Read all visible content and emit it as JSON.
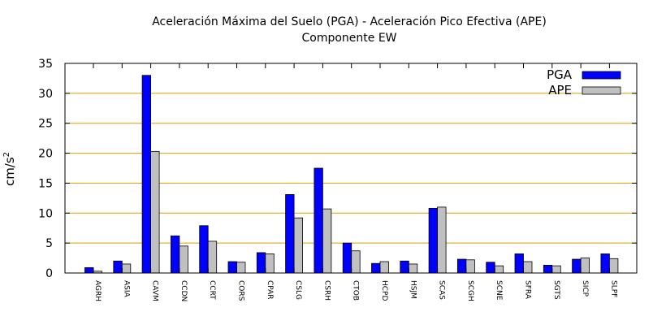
{
  "chart_data": {
    "type": "bar",
    "title": "Aceleración Máxima del Suelo (PGA) -  Aceleración Pico Efectiva (APE)",
    "subtitle": "Componente EW",
    "xlabel": "",
    "ylabel": "cm/s",
    "ylabel_superscript": "2",
    "ylim": [
      0,
      35
    ],
    "yticks": [
      "0",
      "5",
      "10",
      "15",
      "20",
      "25",
      "30",
      "35"
    ],
    "grid": true,
    "legend_position": "top-right",
    "categories": [
      "AGRH",
      "ASIA",
      "CAVM",
      "CCDN",
      "CCRT",
      "CORS",
      "CPAR",
      "CSLG",
      "CSRH",
      "CTOB",
      "HCPD",
      "HSJM",
      "SCAS",
      "SCGH",
      "SCNE",
      "SFRA",
      "SGTS",
      "SICP",
      "SLPF"
    ],
    "series": [
      {
        "name": "PGA",
        "color": "#0000ff",
        "values": [
          0.9,
          2.0,
          33.0,
          6.2,
          7.9,
          1.9,
          3.4,
          13.1,
          17.5,
          5.0,
          1.6,
          2.0,
          10.8,
          2.3,
          1.8,
          3.2,
          1.3,
          2.3,
          3.2
        ]
      },
      {
        "name": "APE",
        "color": "#c0c0c0",
        "values": [
          0.3,
          1.5,
          20.3,
          4.5,
          5.3,
          1.8,
          3.2,
          9.2,
          10.7,
          3.7,
          1.9,
          1.5,
          11.0,
          2.2,
          1.2,
          1.9,
          1.2,
          2.5,
          2.4
        ]
      }
    ],
    "colors": {
      "grid": "#d8a000",
      "axis": "#000000"
    }
  }
}
